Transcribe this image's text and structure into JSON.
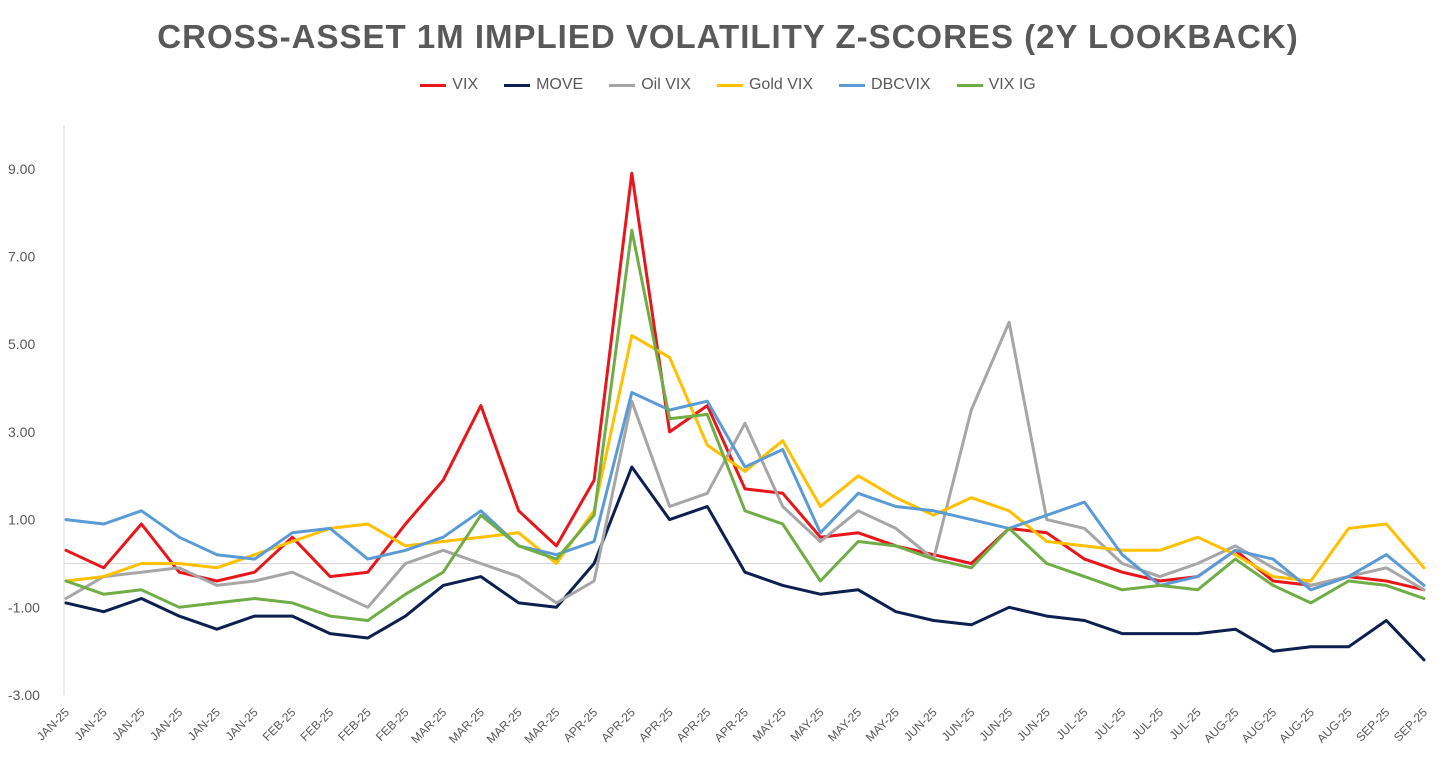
{
  "chart_data": {
    "type": "line",
    "title": "CROSS-ASSET 1M IMPLIED VOLATILITY Z-SCORES (2Y LOOKBACK)",
    "xlabel": "",
    "ylabel": "",
    "ylim": [
      -3,
      10
    ],
    "yticks": [
      9,
      7,
      5,
      3,
      1,
      -1,
      -3
    ],
    "ytick_labels": [
      "9.00",
      "7.00",
      "5.00",
      "3.00",
      "1.00",
      "-1.00",
      "-3.00"
    ],
    "zero_line": true,
    "grid": false,
    "legend_position": "top-center",
    "x_tick_labels": [
      "JAN-25",
      "JAN-25",
      "JAN-25",
      "JAN-25",
      "JAN-25",
      "JAN-25",
      "FEB-25",
      "FEB-25",
      "FEB-25",
      "FEB-25",
      "MAR-25",
      "MAR-25",
      "MAR-25",
      "MAR-25",
      "APR-25",
      "APR-25",
      "APR-25",
      "APR-25",
      "APR-25",
      "MAY-25",
      "MAY-25",
      "MAY-25",
      "MAY-25",
      "JUN-25",
      "JUN-25",
      "JUN-25",
      "JUN-25",
      "JUL-25",
      "JUL-25",
      "JUL-25",
      "JUL-25",
      "AUG-25",
      "AUG-25",
      "AUG-25",
      "AUG-25",
      "SEP-25",
      "SEP-25"
    ],
    "x_count": 37,
    "series": [
      {
        "name": "VIX",
        "color": "#E8161B",
        "values": [
          0.3,
          -0.1,
          0.9,
          -0.2,
          -0.4,
          -0.2,
          0.6,
          -0.3,
          -0.2,
          0.9,
          1.9,
          3.6,
          1.2,
          0.4,
          1.9,
          8.9,
          3.0,
          3.6,
          1.7,
          1.6,
          0.6,
          0.7,
          0.4,
          0.2,
          0.0,
          0.8,
          0.7,
          0.1,
          -0.2,
          -0.4,
          -0.3,
          0.3,
          -0.4,
          -0.5,
          -0.3,
          -0.4,
          -0.6
        ]
      },
      {
        "name": "MOVE",
        "color": "#0D1F4F",
        "values": [
          -0.9,
          -1.1,
          -0.8,
          -1.2,
          -1.5,
          -1.2,
          -1.2,
          -1.6,
          -1.7,
          -1.2,
          -0.5,
          -0.3,
          -0.9,
          -1.0,
          0.0,
          2.2,
          1.0,
          1.3,
          -0.2,
          -0.5,
          -0.7,
          -0.6,
          -1.1,
          -1.3,
          -1.4,
          -1.0,
          -1.2,
          -1.3,
          -1.6,
          -1.6,
          -1.6,
          -1.5,
          -2.0,
          -1.9,
          -1.9,
          -1.3,
          -2.2
        ]
      },
      {
        "name": "Oil VIX",
        "color": "#A6A6A6",
        "values": [
          -0.8,
          -0.3,
          -0.2,
          -0.1,
          -0.5,
          -0.4,
          -0.2,
          -0.6,
          -1.0,
          0.0,
          0.3,
          0.0,
          -0.3,
          -0.9,
          -0.4,
          3.7,
          1.3,
          1.6,
          3.2,
          1.3,
          0.5,
          1.2,
          0.8,
          0.1,
          3.5,
          5.5,
          1.0,
          0.8,
          0.0,
          -0.3,
          0.0,
          0.4,
          -0.1,
          -0.5,
          -0.3,
          -0.1,
          -0.6
        ]
      },
      {
        "name": "Gold VIX",
        "color": "#FFC000",
        "values": [
          -0.4,
          -0.3,
          0.0,
          0.0,
          -0.1,
          0.2,
          0.5,
          0.8,
          0.9,
          0.4,
          0.5,
          0.6,
          0.7,
          0.0,
          1.2,
          5.2,
          4.7,
          2.7,
          2.1,
          2.8,
          1.3,
          2.0,
          1.5,
          1.1,
          1.5,
          1.2,
          0.5,
          0.4,
          0.3,
          0.3,
          0.6,
          0.2,
          -0.3,
          -0.4,
          0.8,
          0.9,
          -0.1
        ]
      },
      {
        "name": "DBCVIX",
        "color": "#5B9BD5",
        "values": [
          1.0,
          0.9,
          1.2,
          0.6,
          0.2,
          0.1,
          0.7,
          0.8,
          0.1,
          0.3,
          0.6,
          1.2,
          0.4,
          0.2,
          0.5,
          3.9,
          3.5,
          3.7,
          2.2,
          2.6,
          0.7,
          1.6,
          1.3,
          1.2,
          1.0,
          0.8,
          1.1,
          1.4,
          0.2,
          -0.5,
          -0.3,
          0.3,
          0.1,
          -0.6,
          -0.3,
          0.2,
          -0.5
        ]
      },
      {
        "name": "VIX IG",
        "color": "#70AD47",
        "values": [
          -0.4,
          -0.7,
          -0.6,
          -1.0,
          -0.9,
          -0.8,
          -0.9,
          -1.2,
          -1.3,
          -0.7,
          -0.2,
          1.1,
          0.4,
          0.1,
          1.1,
          7.6,
          3.3,
          3.4,
          1.2,
          0.9,
          -0.4,
          0.5,
          0.4,
          0.1,
          -0.1,
          0.8,
          0.0,
          -0.3,
          -0.6,
          -0.5,
          -0.6,
          0.1,
          -0.5,
          -0.9,
          -0.4,
          -0.5,
          -0.8
        ]
      }
    ]
  }
}
